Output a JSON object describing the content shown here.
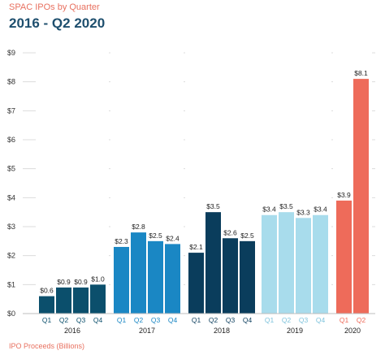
{
  "subtitle": "SPAC IPOs by Quarter",
  "title": "2016 - Q2 2020",
  "footnote": "IPO Proceeds (Billions)",
  "chart_data": {
    "type": "bar",
    "ylim": [
      0,
      9
    ],
    "yticks": [
      "$0",
      "$1",
      "$2",
      "$3",
      "$4",
      "$5",
      "$6",
      "$7",
      "$8",
      "$9"
    ],
    "grid": true,
    "groups": [
      {
        "year": "2016",
        "color": "#0b4f6c",
        "qcolor": "#0b4f6c",
        "quarters": [
          "Q1",
          "Q2",
          "Q3",
          "Q4"
        ],
        "values": [
          0.6,
          0.9,
          0.9,
          1.0
        ],
        "labels": [
          "$0.6",
          "$0.9",
          "$0.9",
          "$1.0"
        ]
      },
      {
        "year": "2017",
        "color": "#1a87c4",
        "qcolor": "#1a87c4",
        "quarters": [
          "Q1",
          "Q2",
          "Q3",
          "Q4"
        ],
        "values": [
          2.3,
          2.8,
          2.5,
          2.4
        ],
        "labels": [
          "$2.3",
          "$2.8",
          "$2.5",
          "$2.4"
        ]
      },
      {
        "year": "2018",
        "color": "#0a3d5c",
        "qcolor": "#0a3d5c",
        "quarters": [
          "Q1",
          "Q2",
          "Q3",
          "Q4"
        ],
        "values": [
          2.1,
          3.5,
          2.6,
          2.5
        ],
        "labels": [
          "$2.1",
          "$3.5",
          "$2.6",
          "$2.5"
        ]
      },
      {
        "year": "2019",
        "color": "#a8dcec",
        "qcolor": "#7ec3dc",
        "quarters": [
          "Q1",
          "Q2",
          "Q3",
          "Q4"
        ],
        "values": [
          3.4,
          3.5,
          3.3,
          3.4
        ],
        "labels": [
          "$3.4",
          "$3.5",
          "$3.3",
          "$3.4"
        ]
      },
      {
        "year": "2020",
        "color": "#ee6b5a",
        "qcolor": "#ee6b5a",
        "quarters": [
          "Q1",
          "Q2"
        ],
        "values": [
          3.9,
          8.1
        ],
        "labels": [
          "$3.9",
          "$8.1"
        ]
      }
    ]
  }
}
